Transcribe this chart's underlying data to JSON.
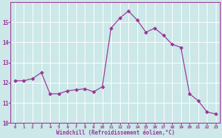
{
  "x": [
    0,
    1,
    2,
    3,
    4,
    5,
    6,
    7,
    8,
    9,
    10,
    11,
    12,
    13,
    14,
    15,
    16,
    17,
    18,
    19,
    20,
    21,
    22,
    23
  ],
  "y": [
    12.1,
    12.1,
    12.2,
    12.5,
    11.45,
    11.45,
    11.6,
    11.65,
    11.7,
    11.55,
    11.8,
    14.7,
    15.2,
    15.55,
    15.1,
    14.5,
    14.7,
    14.35,
    13.9,
    13.75,
    11.45,
    11.1,
    10.55,
    10.45
  ],
  "ylim": [
    10,
    16
  ],
  "xlim": [
    -0.5,
    23.5
  ],
  "yticks": [
    10,
    11,
    12,
    13,
    14,
    15
  ],
  "xticks": [
    0,
    1,
    2,
    3,
    4,
    5,
    6,
    7,
    8,
    9,
    10,
    11,
    12,
    13,
    14,
    15,
    16,
    17,
    18,
    19,
    20,
    21,
    22,
    23
  ],
  "xlabel": "Windchill (Refroidissement éolien,°C)",
  "line_color": "#993399",
  "marker": "D",
  "marker_size": 2.5,
  "bg_color": "#cce8e8",
  "grid_color": "#b0d8d8",
  "tick_color": "#993399",
  "label_color": "#993399",
  "font_family": "monospace"
}
